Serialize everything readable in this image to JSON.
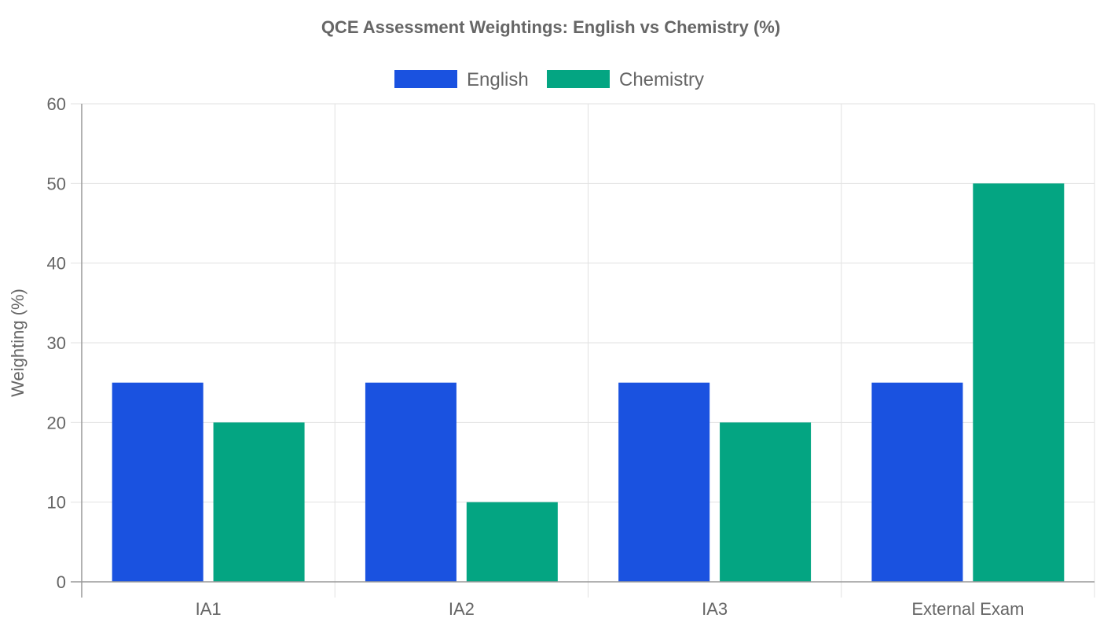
{
  "chart_data": {
    "type": "bar",
    "title": "QCE Assessment Weightings: English vs Chemistry (%)",
    "xlabel": "",
    "ylabel": "Weighting (%)",
    "categories": [
      "IA1",
      "IA2",
      "IA3",
      "External Exam"
    ],
    "series": [
      {
        "name": "English",
        "color": "#1a52e0",
        "values": [
          25,
          25,
          25,
          25
        ]
      },
      {
        "name": "Chemistry",
        "color": "#04a582",
        "values": [
          20,
          10,
          20,
          50
        ]
      }
    ],
    "ylim": [
      0,
      60
    ],
    "yticks": [
      0,
      10,
      20,
      30,
      40,
      50,
      60
    ],
    "grid": true,
    "legend": "top-center"
  }
}
